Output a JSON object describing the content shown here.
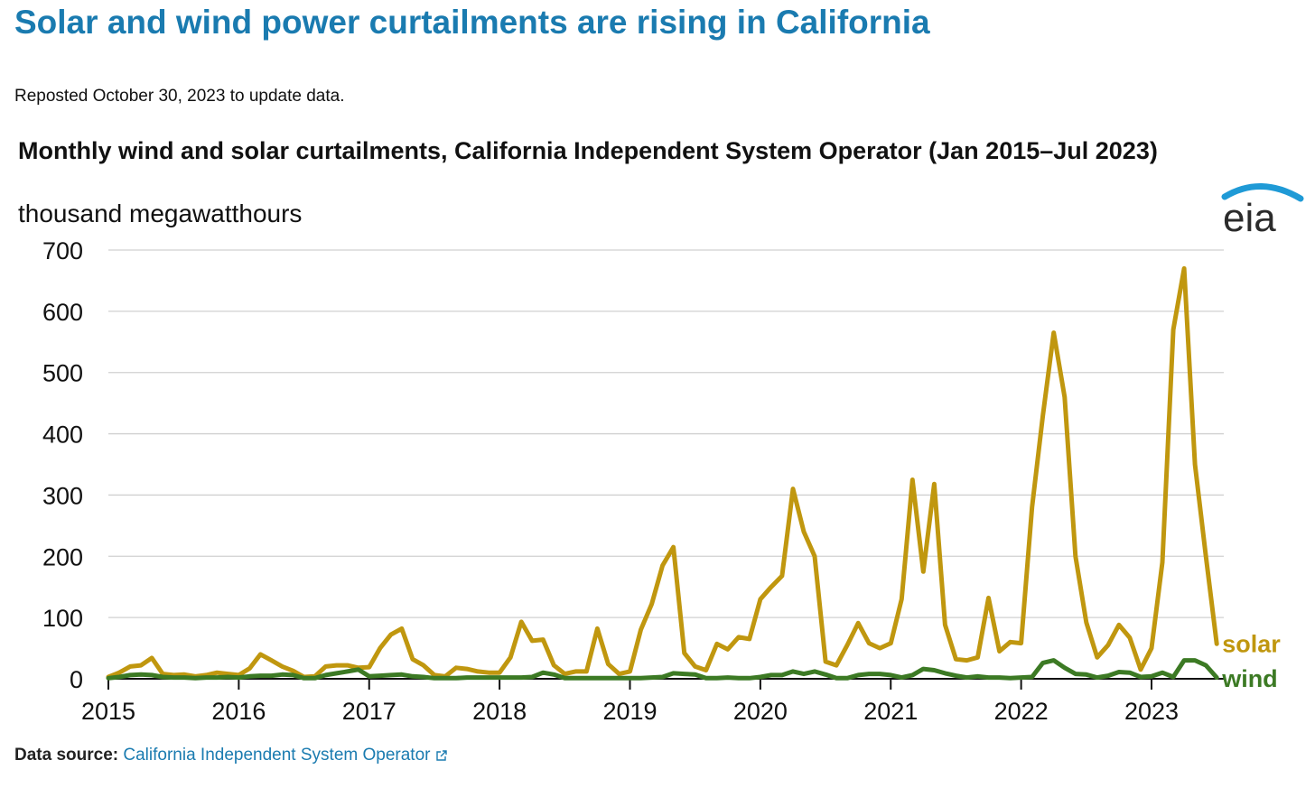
{
  "headline": "Solar and wind power curtailments are rising in California",
  "note": "Reposted October 30, 2023 to update data.",
  "logo_text": "eia",
  "footer": {
    "label": "Data source:",
    "link_text": "California Independent System Operator"
  },
  "colors": {
    "headline": "#1a7bb0",
    "solar": "#c0970f",
    "wind": "#3c7a24",
    "grid": "#d0d0d0"
  },
  "chart_data": {
    "type": "line",
    "title": "Monthly wind and solar curtailments, California Independent System Operator (Jan 2015–Jul 2023)",
    "ylabel": "thousand megawatthours",
    "ylim": [
      0,
      700
    ],
    "yticks": [
      0,
      100,
      200,
      300,
      400,
      500,
      600,
      700
    ],
    "xticks": [
      "2015",
      "2016",
      "2017",
      "2018",
      "2019",
      "2020",
      "2021",
      "2022",
      "2023"
    ],
    "x_start": "Jan 2015",
    "x_end": "Jul 2023",
    "grid": true,
    "legend": "series labels at right end of lines",
    "series": [
      {
        "name": "solar",
        "values": [
          3,
          10,
          20,
          22,
          34,
          8,
          6,
          7,
          4,
          6,
          10,
          8,
          6,
          17,
          40,
          30,
          20,
          13,
          3,
          4,
          20,
          22,
          22,
          18,
          19,
          50,
          72,
          82,
          32,
          22,
          6,
          4,
          18,
          16,
          12,
          10,
          10,
          35,
          93,
          62,
          64,
          22,
          8,
          12,
          12,
          82,
          24,
          8,
          12,
          80,
          122,
          185,
          215,
          42,
          20,
          14,
          57,
          48,
          68,
          65,
          130,
          150,
          168,
          310,
          240,
          200,
          28,
          22,
          55,
          91,
          58,
          50,
          58,
          130,
          325,
          175,
          318,
          88,
          32,
          30,
          35,
          132,
          45,
          60,
          58,
          280,
          430,
          565,
          460,
          200,
          92,
          35,
          55,
          88,
          67,
          15,
          50,
          190,
          570,
          670,
          350,
          200,
          57
        ]
      },
      {
        "name": "wind",
        "values": [
          1,
          3,
          6,
          7,
          6,
          3,
          2,
          2,
          1,
          2,
          2,
          3,
          2,
          4,
          5,
          5,
          7,
          6,
          1,
          1,
          6,
          9,
          12,
          15,
          4,
          5,
          6,
          7,
          4,
          3,
          1,
          1,
          1,
          2,
          2,
          2,
          2,
          2,
          2,
          3,
          10,
          7,
          1,
          1,
          1,
          1,
          1,
          1,
          1,
          1,
          2,
          3,
          9,
          8,
          7,
          1,
          1,
          2,
          1,
          1,
          3,
          6,
          6,
          12,
          8,
          12,
          7,
          1,
          1,
          6,
          8,
          8,
          6,
          2,
          6,
          16,
          14,
          9,
          5,
          2,
          4,
          2,
          2,
          1,
          2,
          3,
          26,
          30,
          18,
          8,
          7,
          2,
          5,
          11,
          10,
          3,
          4,
          10,
          3,
          30,
          30,
          22,
          2
        ]
      }
    ]
  }
}
